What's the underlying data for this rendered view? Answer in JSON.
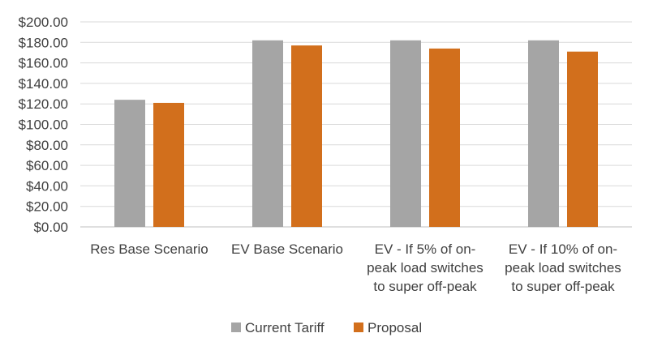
{
  "chart_data": {
    "type": "bar",
    "categories": [
      [
        "Res Base Scenario"
      ],
      [
        "EV Base Scenario"
      ],
      [
        "EV - If 5% of on-",
        "peak load switches",
        "to super off-peak"
      ],
      [
        "EV - If 10% of on-",
        "peak load switches",
        "to super off-peak"
      ]
    ],
    "series": [
      {
        "name": "Current Tariff",
        "color": "#a5a5a5",
        "values": [
          124,
          182,
          182,
          182
        ]
      },
      {
        "name": "Proposal",
        "color": "#d26f1c",
        "values": [
          121,
          177,
          174,
          171
        ]
      }
    ],
    "ylim": [
      0,
      200
    ],
    "yticks": [
      0,
      20,
      40,
      60,
      80,
      100,
      120,
      140,
      160,
      180,
      200
    ],
    "ytick_labels": [
      "$0.00",
      "$20.00",
      "$40.00",
      "$60.00",
      "$80.00",
      "$100.00",
      "$120.00",
      "$140.00",
      "$160.00",
      "$180.00",
      "$200.00"
    ],
    "grid": true,
    "legend_position": "bottom"
  }
}
